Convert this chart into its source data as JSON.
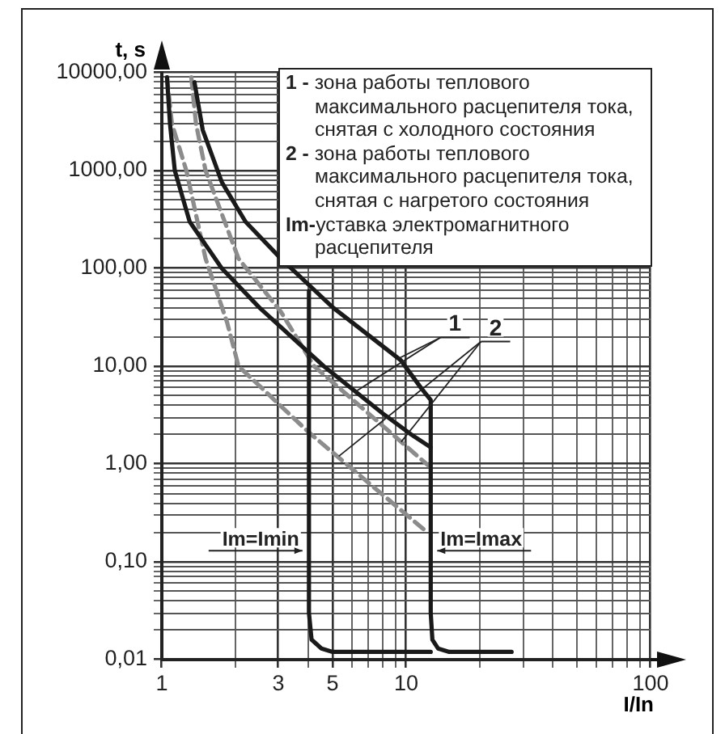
{
  "chart_data": {
    "type": "line",
    "xlabel": "I/In",
    "ylabel": "t, s",
    "log": "xy",
    "grid": true,
    "legend": false,
    "marker": "none",
    "xlim": [
      1,
      100
    ],
    "ylim": [
      0.01,
      10000
    ],
    "xticks": [
      1,
      {
        "value": 2,
        "label": null
      },
      3,
      {
        "value": 4,
        "label": null
      },
      5,
      {
        "value": 6,
        "label": null
      },
      {
        "value": 7,
        "label": null
      },
      {
        "value": 8,
        "label": null
      },
      {
        "value": 9,
        "label": null
      },
      10,
      {
        "value": 20,
        "label": null
      },
      {
        "value": 30,
        "label": null
      },
      {
        "value": 40,
        "label": null
      },
      {
        "value": 50,
        "label": null
      },
      {
        "value": 60,
        "label": null
      },
      {
        "value": 70,
        "label": null
      },
      {
        "value": 80,
        "label": null
      },
      {
        "value": 90,
        "label": null
      },
      100
    ],
    "yticks": [
      {
        "value": 0.01,
        "label": "0,01"
      },
      {
        "value": 0.02,
        "label": null
      },
      {
        "value": 0.03,
        "label": null
      },
      {
        "value": 0.04,
        "label": null
      },
      {
        "value": 0.05,
        "label": null
      },
      {
        "value": 0.06,
        "label": null
      },
      {
        "value": 0.07,
        "label": null
      },
      {
        "value": 0.08,
        "label": null
      },
      {
        "value": 0.09,
        "label": null
      },
      {
        "value": 0.1,
        "label": "0,10"
      },
      {
        "value": 0.2,
        "label": null
      },
      {
        "value": 0.3,
        "label": null
      },
      {
        "value": 0.4,
        "label": null
      },
      {
        "value": 0.5,
        "label": null
      },
      {
        "value": 0.6,
        "label": null
      },
      {
        "value": 0.7,
        "label": null
      },
      {
        "value": 0.8,
        "label": null
      },
      {
        "value": 0.9,
        "label": null
      },
      {
        "value": 1,
        "label": "1,00"
      },
      {
        "value": 2,
        "label": null
      },
      {
        "value": 3,
        "label": null
      },
      {
        "value": 4,
        "label": null
      },
      {
        "value": 5,
        "label": null
      },
      {
        "value": 6,
        "label": null
      },
      {
        "value": 7,
        "label": null
      },
      {
        "value": 8,
        "label": null
      },
      {
        "value": 9,
        "label": null
      },
      {
        "value": 10,
        "label": "10,00"
      },
      {
        "value": 20,
        "label": null
      },
      {
        "value": 30,
        "label": null
      },
      {
        "value": 40,
        "label": null
      },
      {
        "value": 50,
        "label": null
      },
      {
        "value": 60,
        "label": null
      },
      {
        "value": 70,
        "label": null
      },
      {
        "value": 80,
        "label": null
      },
      {
        "value": 90,
        "label": null
      },
      {
        "value": 100,
        "label": "100,00"
      },
      {
        "value": 200,
        "label": null
      },
      {
        "value": 300,
        "label": null
      },
      {
        "value": 400,
        "label": null
      },
      {
        "value": 500,
        "label": null
      },
      {
        "value": 600,
        "label": null
      },
      {
        "value": 700,
        "label": null
      },
      {
        "value": 800,
        "label": null
      },
      {
        "value": 900,
        "label": null
      },
      {
        "value": 1000,
        "label": "1000,00"
      },
      {
        "value": 2000,
        "label": null
      },
      {
        "value": 3000,
        "label": null
      },
      {
        "value": 4000,
        "label": null
      },
      {
        "value": 5000,
        "label": null
      },
      {
        "value": 6000,
        "label": null
      },
      {
        "value": 7000,
        "label": null
      },
      {
        "value": 8000,
        "label": null
      },
      {
        "value": 9000,
        "label": null
      },
      {
        "value": 10000,
        "label": "10000,00"
      }
    ],
    "series": [
      {
        "color": "#1a1a1a",
        "line_style": "solid",
        "x": [
          1.36,
          1.47,
          1.76,
          2.2,
          3.07,
          5,
          9.5,
          11.5,
          12.6,
          12.6,
          12.8,
          13.5,
          15,
          27
        ],
        "values": [
          8000,
          2600,
          760,
          300,
          126,
          40,
          11.5,
          6,
          4.5,
          0.03,
          0.016,
          0.013,
          0.012,
          0.012
        ]
      },
      {
        "color": "#1a1a1a",
        "line_style": "solid",
        "x": [
          1.05,
          1.08,
          1.13,
          1.3,
          1.76,
          2.5,
          4.6,
          8,
          10.5,
          12.6
        ],
        "values": [
          9000,
          3000,
          1000,
          300,
          100,
          40,
          10,
          3.3,
          2,
          1.48
        ]
      },
      {
        "color": "#1a1a1a",
        "line_style": "solid",
        "x": [
          4,
          4,
          4.1,
          4.5,
          5,
          12.6
        ],
        "values": [
          59,
          0.03,
          0.016,
          0.013,
          0.012,
          0.012
        ]
      },
      {
        "color": "#8c8c8c",
        "line_style": "dashed",
        "x": [
          1.05,
          1.1,
          1.26,
          1.51,
          1.85,
          2.06,
          4,
          12.2
        ],
        "values": [
          9000,
          3000,
          1000,
          126,
          28,
          10,
          2.1,
          0.2
        ]
      },
      {
        "color": "#8c8c8c",
        "line_style": "dashed",
        "x": [
          1.32,
          1.38,
          1.51,
          2.06,
          3.07,
          4.2,
          12.6
        ],
        "values": [
          9000,
          3000,
          1000,
          126,
          36,
          10,
          0.92
        ]
      }
    ],
    "annotations": [
      "1 - зона работы теплового максимального расцепителя тока, снятая с холодного состояния",
      "2 - зона работы теплового максимального расцепителя тока, снятая с нагретого состояния",
      "Im-уставка электромагнитного расцепителя",
      {
        "text": "1",
        "x": 6.2,
        "y": 5.5
      },
      {
        "text": "2",
        "x": 5.3,
        "y": 1.2
      },
      {
        "text": "Im=Imin",
        "x": 4,
        "y": 0.13
      },
      {
        "text": "Im=Imax",
        "x": 12.6,
        "y": 0.13
      }
    ]
  }
}
